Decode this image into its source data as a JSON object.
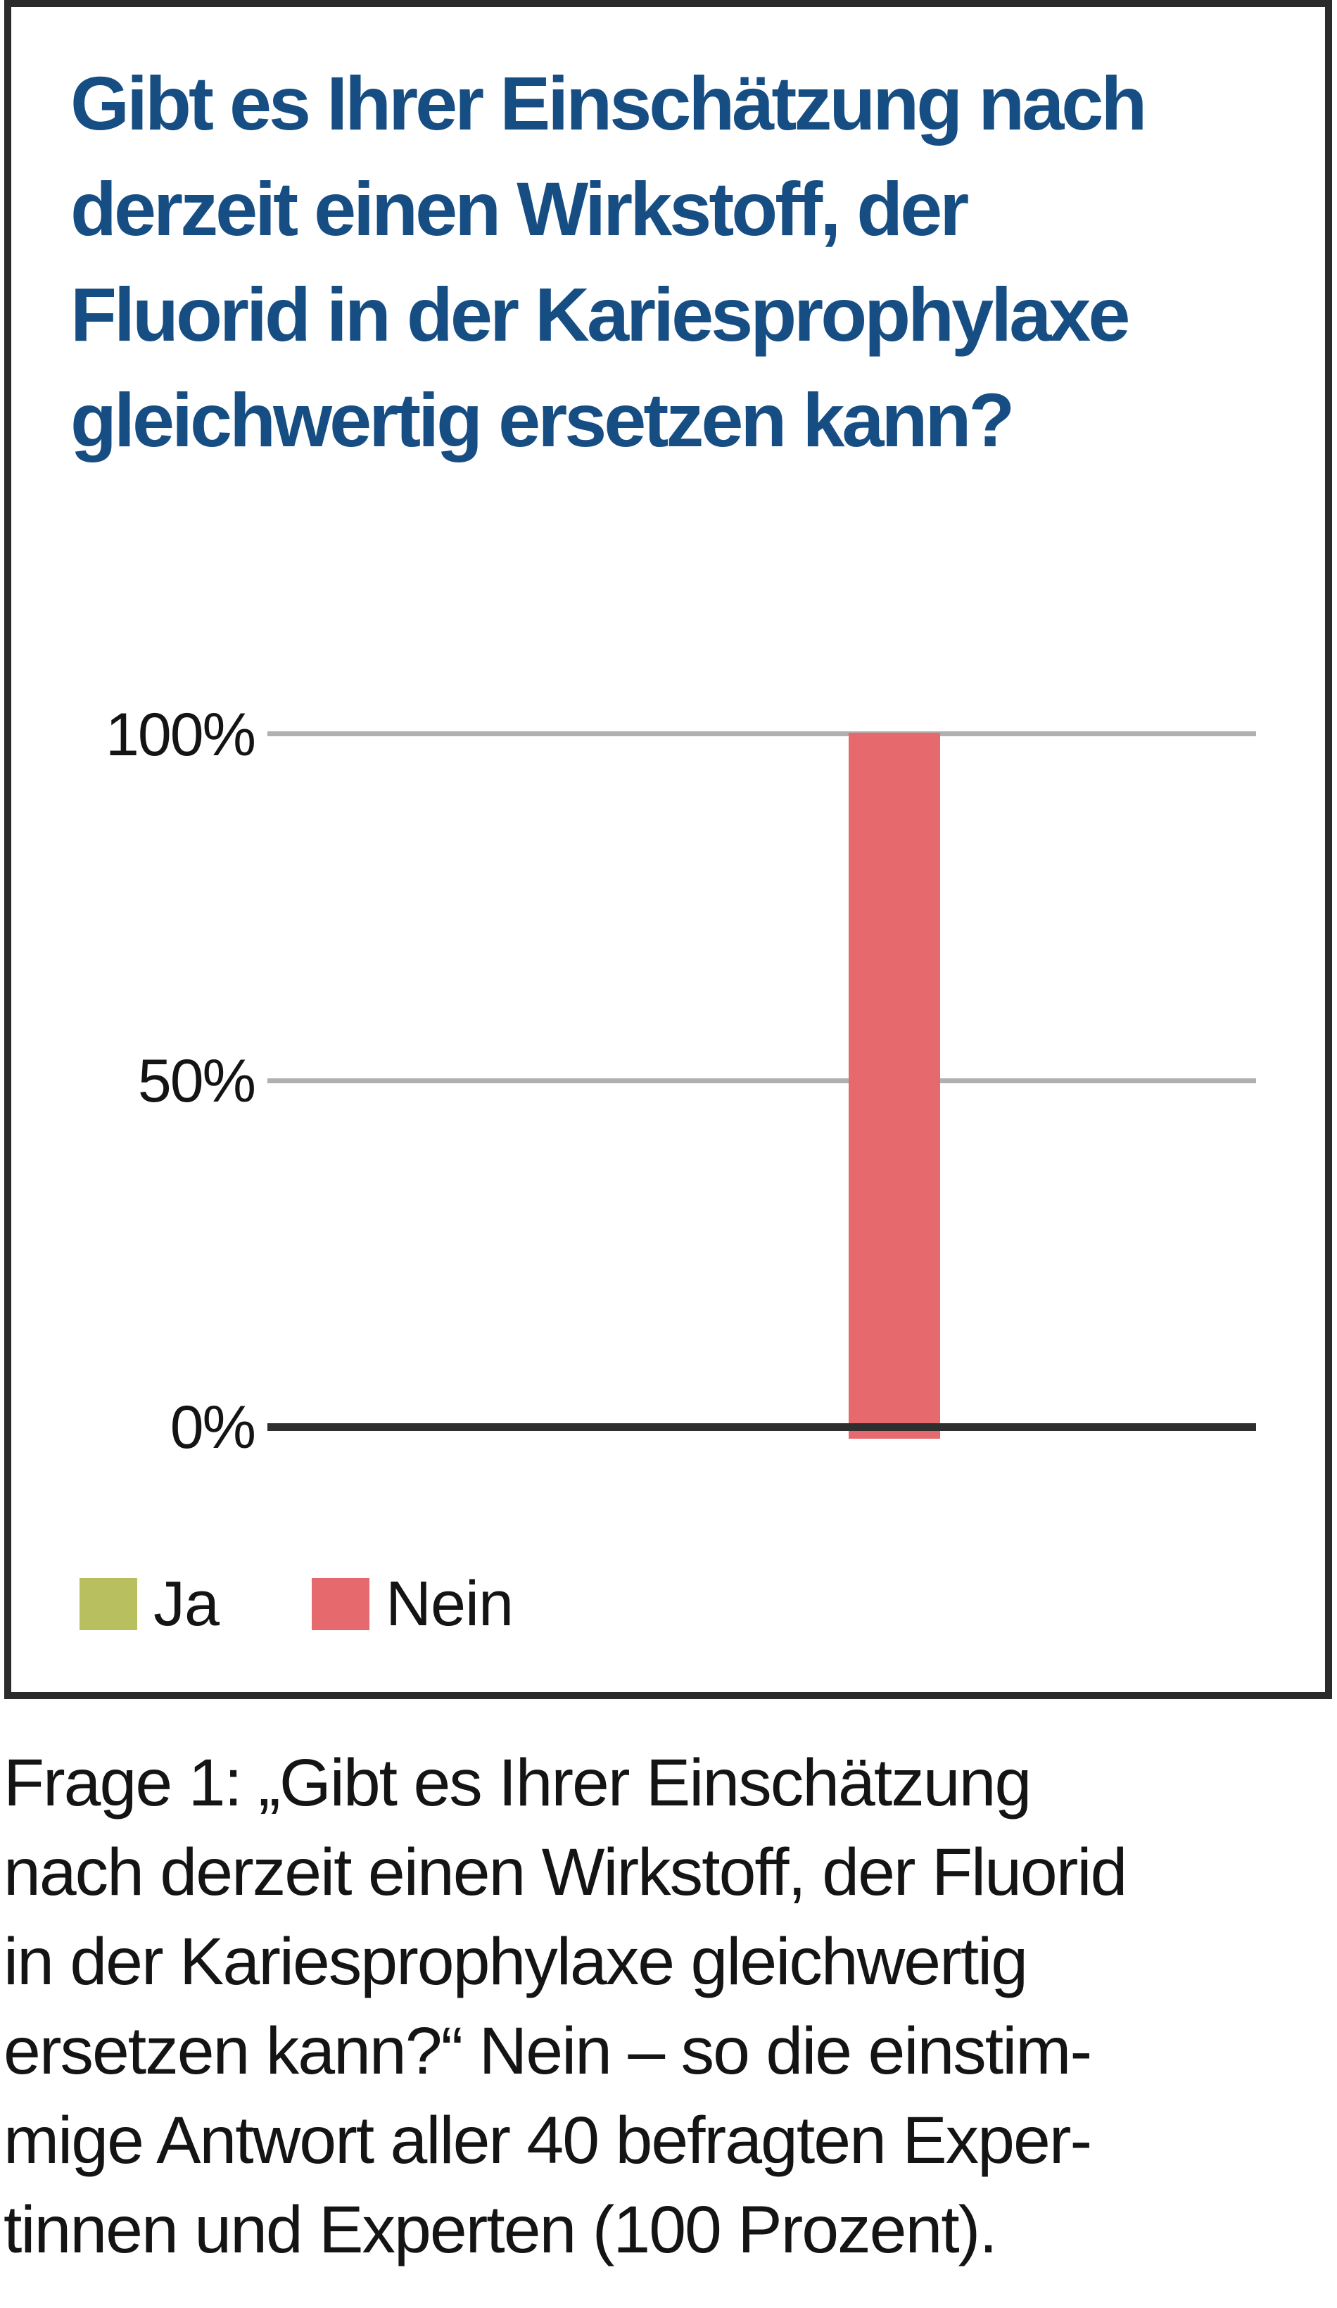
{
  "chart_data": {
    "type": "bar",
    "title": "Gibt es Ihrer Einschätzung nach derzeit einen Wirkstoff, der Fluorid in der Kariesprophylaxe gleichwertig ersetzen kann?",
    "title_lines": [
      "Gibt es Ihrer Einschätzung nach",
      "derzeit einen Wirkstoff, der",
      "Fluorid in der Kariesprophylaxe",
      "gleichwertig ersetzen kann?"
    ],
    "categories": [
      "Ja",
      "Nein"
    ],
    "values": [
      0,
      100
    ],
    "unit": "%",
    "ylim": [
      0,
      100
    ],
    "ytick_labels": [
      "100%",
      "50%",
      "0%"
    ],
    "ytick_values": [
      100,
      50,
      0
    ],
    "grid": true,
    "legend_position": "bottom-left",
    "legend": [
      {
        "label": "Ja",
        "color": "#b7bf5e"
      },
      {
        "label": "Nein",
        "color": "#e6696e"
      }
    ]
  },
  "caption": {
    "text": "Frage 1: „Gibt es Ihrer Einschätzung nach derzeit einen Wirkstoff, der Fluorid in der Kariesprophylaxe gleichwertig ersetzen kann?“ Nein – so die einstimmige Antwort aller 40 befragten Expertinnen und Experten (100 Prozent).",
    "lines": [
      "Frage 1: „Gibt es Ihrer Einschätzung",
      "nach derzeit einen Wirkstoff, der Fluorid",
      "in der Kariesprophylaxe gleichwertig",
      "ersetzen kann?“ Nein – so die einstim-",
      "mige Antwort aller 40 befragten Exper-",
      "tinnen und Experten (100 Prozent)."
    ]
  },
  "colors": {
    "title_blue": "#164e84",
    "bar_nein": "#e6696e",
    "legend_ja": "#b7bf5e",
    "gridline": "#b0b0b0",
    "axis_line": "#2e2e2e",
    "box_border": "#2b2b2b",
    "text": "#141414",
    "background": "#ffffff"
  }
}
